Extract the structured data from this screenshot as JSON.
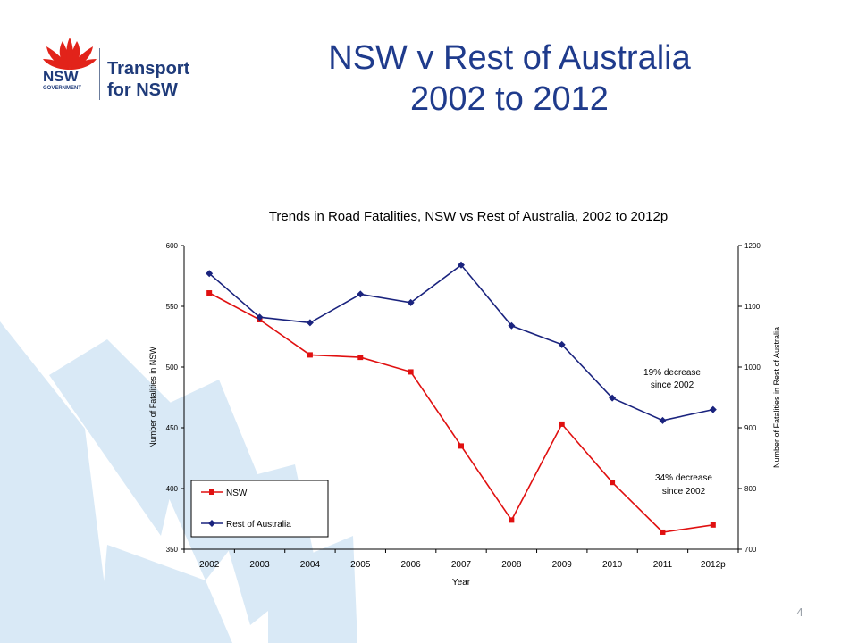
{
  "slide": {
    "title_line1": "NSW v Rest of Australia",
    "title_line2": "2002 to 2012",
    "page_number": "4"
  },
  "logo": {
    "nsw": "NSW",
    "government": "GOVERNMENT",
    "transport": "Transport",
    "for_nsw": "for NSW"
  },
  "colors": {
    "title": "#1f3b8c",
    "nsw_series": "#e01010",
    "rest_series": "#1a237e",
    "petal": "#d9e9f6",
    "logo_red": "#e2231a",
    "logo_blue": "#1f3b7a"
  },
  "chart_data": {
    "type": "line",
    "title": "Trends in Road Fatalities, NSW vs Rest of Australia, 2002 to 2012p",
    "xlabel": "Year",
    "ylabel": "Number of Fatalities in NSW",
    "y2label": "Number of Fatalities in Rest of Australia",
    "categories": [
      "2002",
      "2003",
      "2004",
      "2005",
      "2006",
      "2007",
      "2008",
      "2009",
      "2010",
      "2011",
      "2012p"
    ],
    "ylim": [
      350,
      600
    ],
    "y2lim": [
      700,
      1200
    ],
    "yticks": [
      350,
      400,
      450,
      500,
      550,
      600
    ],
    "y2ticks": [
      700,
      800,
      900,
      1000,
      1100,
      1200
    ],
    "grid": false,
    "legend_position": "bottom-left",
    "series": [
      {
        "name": "NSW",
        "axis": "left",
        "marker": "square",
        "color": "#e01010",
        "values": [
          561,
          539,
          510,
          508,
          496,
          435,
          374,
          453,
          405,
          364,
          370
        ]
      },
      {
        "name": "Rest of Australia",
        "axis": "right",
        "marker": "diamond",
        "color": "#1a237e",
        "values": [
          1154,
          1082,
          1073,
          1120,
          1106,
          1168,
          1068,
          1037,
          949,
          912,
          930
        ]
      }
    ],
    "annotations": [
      {
        "line1": "19% decrease",
        "line2": "since 2002"
      },
      {
        "line1": "34% decrease",
        "line2": "since 2002"
      }
    ]
  }
}
